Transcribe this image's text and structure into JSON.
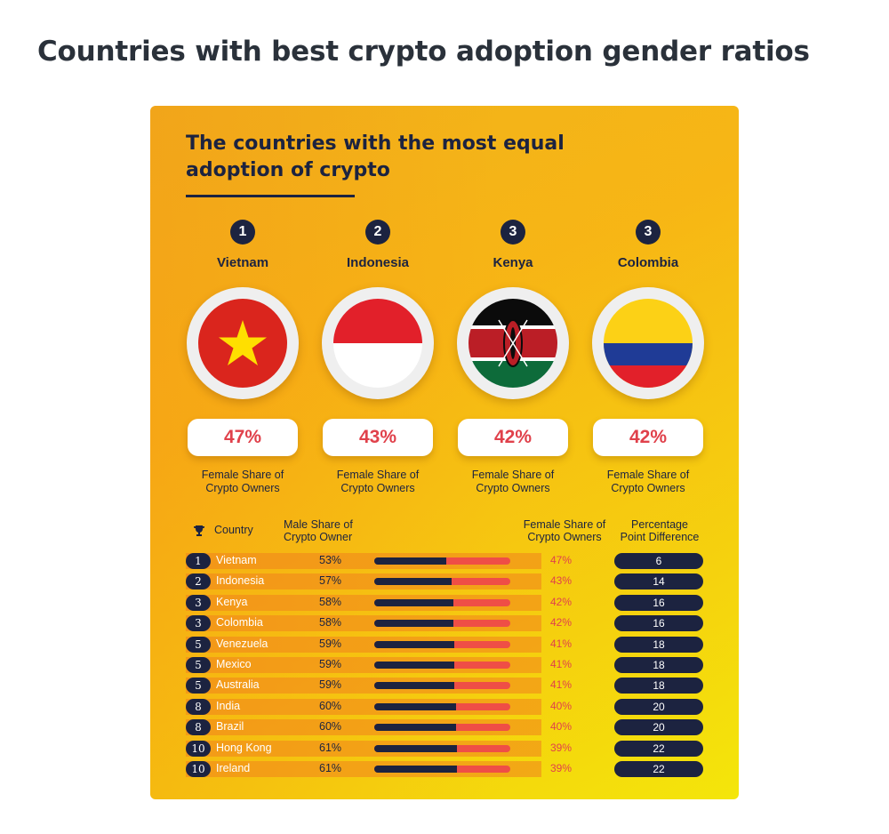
{
  "page_title": "Countries with best crypto adoption gender ratios",
  "infographic": {
    "heading": "The countries with the most equal adoption of crypto",
    "podium": [
      {
        "rank": "1",
        "country": "Vietnam",
        "female_share": "47%",
        "caption_line1": "Female Share of",
        "caption_line2": "Crypto Owners",
        "flag": "vietnam-flag-icon"
      },
      {
        "rank": "2",
        "country": "Indonesia",
        "female_share": "43%",
        "caption_line1": "Female Share of",
        "caption_line2": "Crypto Owners",
        "flag": "indonesia-flag-icon"
      },
      {
        "rank": "3",
        "country": "Kenya",
        "female_share": "42%",
        "caption_line1": "Female Share of",
        "caption_line2": "Crypto Owners",
        "flag": "kenya-flag-icon"
      },
      {
        "rank": "3",
        "country": "Colombia",
        "female_share": "42%",
        "caption_line1": "Female Share of",
        "caption_line2": "Crypto Owners",
        "flag": "colombia-flag-icon"
      }
    ],
    "table_headers": {
      "country": "Country",
      "male_line1": "Male Share of",
      "male_line2": "Crypto Owner",
      "female_line1": "Female Share of",
      "female_line2": "Crypto Owners",
      "diff_line1": "Percentage",
      "diff_line2": "Point Difference"
    },
    "colors": {
      "navy": "#1c2340",
      "accent_red": "#e0414b",
      "background": "#f7b615"
    }
  },
  "chart_data": {
    "type": "table",
    "title": "The countries with the most equal adoption of crypto",
    "columns": [
      "Rank",
      "Country",
      "Male Share of Crypto Owner",
      "Female Share of Crypto Owners",
      "Percentage Point Difference"
    ],
    "rows": [
      {
        "rank": "1",
        "country": "Vietnam",
        "male": "53%",
        "female": "47%",
        "diff": "6",
        "male_value": 53
      },
      {
        "rank": "2",
        "country": "Indonesia",
        "male": "57%",
        "female": "43%",
        "diff": "14",
        "male_value": 57
      },
      {
        "rank": "3",
        "country": "Kenya",
        "male": "58%",
        "female": "42%",
        "diff": "16",
        "male_value": 58
      },
      {
        "rank": "3",
        "country": "Colombia",
        "male": "58%",
        "female": "42%",
        "diff": "16",
        "male_value": 58
      },
      {
        "rank": "5",
        "country": "Venezuela",
        "male": "59%",
        "female": "41%",
        "diff": "18",
        "male_value": 59
      },
      {
        "rank": "5",
        "country": "Mexico",
        "male": "59%",
        "female": "41%",
        "diff": "18",
        "male_value": 59
      },
      {
        "rank": "5",
        "country": "Australia",
        "male": "59%",
        "female": "41%",
        "diff": "18",
        "male_value": 59
      },
      {
        "rank": "8",
        "country": "India",
        "male": "60%",
        "female": "40%",
        "diff": "20",
        "male_value": 60
      },
      {
        "rank": "8",
        "country": "Brazil",
        "male": "60%",
        "female": "40%",
        "diff": "20",
        "male_value": 60
      },
      {
        "rank": "10",
        "country": "Hong Kong",
        "male": "61%",
        "female": "39%",
        "diff": "22",
        "male_value": 61
      },
      {
        "rank": "10",
        "country": "Ireland",
        "male": "61%",
        "female": "39%",
        "diff": "22",
        "male_value": 61
      }
    ]
  }
}
